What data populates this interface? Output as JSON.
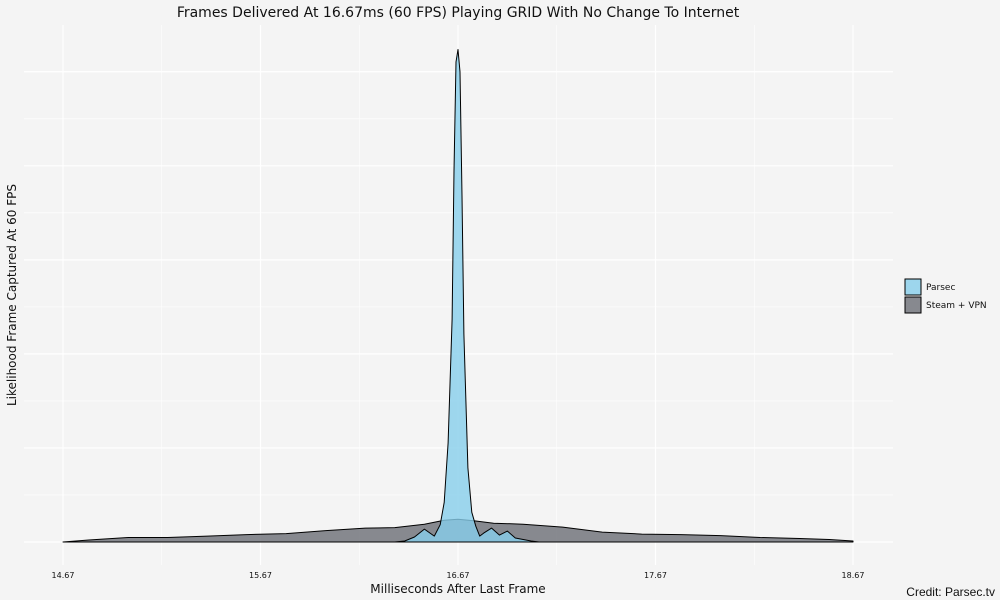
{
  "chart_data": {
    "type": "area",
    "title": "Frames Delivered At 16.67ms (60 FPS) Playing GRID With No Change To Internet",
    "xlabel": "Milliseconds After Last Frame",
    "ylabel": "Likelihood Frame Captured At 60 FPS",
    "x_ticks": [
      "14.67",
      "15.67",
      "16.67",
      "17.67",
      "18.67"
    ],
    "xlim": [
      14.6,
      18.8
    ],
    "ylim": [
      0,
      1.05
    ],
    "grid": true,
    "legend_position": "right",
    "credit": "Credit: Parsec.tv",
    "colors": {
      "parsec": "#87ceeb",
      "steam_vpn": "#6b6e75",
      "background": "#f4f4f4",
      "grid": "#ffffff"
    },
    "series": [
      {
        "name": "Steam + VPN",
        "color": "#6b6e75",
        "x": [
          14.67,
          14.8,
          15.0,
          15.2,
          15.4,
          15.6,
          15.8,
          16.0,
          16.2,
          16.35,
          16.5,
          16.6,
          16.67,
          16.75,
          16.85,
          17.0,
          17.2,
          17.4,
          17.6,
          17.8,
          18.0,
          18.2,
          18.4,
          18.55,
          18.67
        ],
        "y": [
          0.0,
          0.004,
          0.009,
          0.009,
          0.012,
          0.015,
          0.017,
          0.023,
          0.028,
          0.029,
          0.036,
          0.044,
          0.046,
          0.043,
          0.038,
          0.036,
          0.03,
          0.02,
          0.016,
          0.015,
          0.013,
          0.009,
          0.007,
          0.005,
          0.002
        ]
      },
      {
        "name": "Parsec",
        "color": "#87ceeb",
        "x": [
          16.35,
          16.4,
          16.45,
          16.5,
          16.55,
          16.58,
          16.6,
          16.62,
          16.64,
          16.65,
          16.66,
          16.67,
          16.68,
          16.69,
          16.7,
          16.72,
          16.74,
          16.76,
          16.78,
          16.8,
          16.84,
          16.88,
          16.92,
          16.96,
          17.0,
          17.04,
          17.08
        ],
        "y": [
          0.0,
          0.002,
          0.01,
          0.026,
          0.012,
          0.035,
          0.08,
          0.2,
          0.45,
          0.75,
          0.97,
          0.995,
          0.95,
          0.7,
          0.42,
          0.15,
          0.06,
          0.032,
          0.012,
          0.018,
          0.028,
          0.014,
          0.022,
          0.008,
          0.005,
          0.002,
          0.0
        ]
      }
    ]
  }
}
